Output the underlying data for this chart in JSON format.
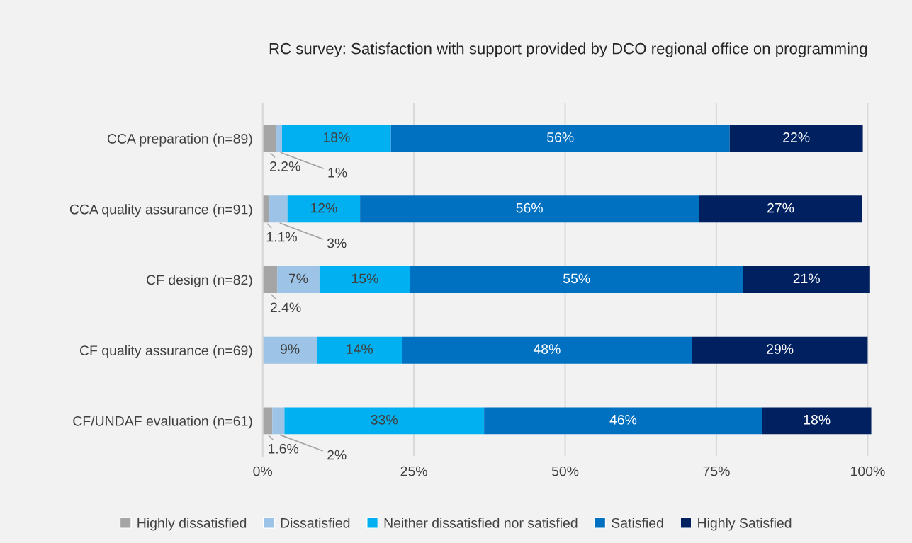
{
  "chart_data": {
    "type": "bar",
    "orientation": "horizontal",
    "stacked": true,
    "title": "RC survey: Satisfaction with support provided by DCO regional office on programming",
    "categories": [
      "CCA preparation (n=89)",
      "CCA quality assurance (n=91)",
      "CF design (n=82)",
      "CF quality assurance (n=69)",
      "CF/UNDAF evaluation (n=61)"
    ],
    "series": [
      {
        "name": "Highly dissatisfied",
        "color": "#a5a5a5",
        "values": [
          2.2,
          1.1,
          2.4,
          null,
          1.6
        ],
        "value_labels": [
          "2.2%",
          "1.1%",
          "2.4%",
          null,
          "1.6%"
        ]
      },
      {
        "name": "Dissatisfied",
        "color": "#9dc3e6",
        "values": [
          1,
          3,
          7,
          9,
          2
        ],
        "value_labels": [
          "1%",
          "3%",
          "7%",
          "9%",
          "2%"
        ]
      },
      {
        "name": "Neither dissatisfied nor satisfied",
        "color": "#00b0f0",
        "values": [
          18,
          12,
          15,
          14,
          33
        ],
        "value_labels": [
          "18%",
          "12%",
          "15%",
          "14%",
          "33%"
        ]
      },
      {
        "name": "Satisfied",
        "color": "#0070c0",
        "values": [
          56,
          56,
          55,
          48,
          46
        ],
        "value_labels": [
          "56%",
          "56%",
          "55%",
          "48%",
          "46%"
        ]
      },
      {
        "name": "Highly Satisfied",
        "color": "#002060",
        "values": [
          22,
          27,
          21,
          29,
          18
        ],
        "value_labels": [
          "22%",
          "27%",
          "21%",
          "29%",
          "18%"
        ]
      }
    ],
    "xlim": [
      0,
      101
    ],
    "xticks": [
      {
        "value": 0,
        "label": "0%"
      },
      {
        "value": 25,
        "label": "25%"
      },
      {
        "value": 50,
        "label": "50%"
      },
      {
        "value": 75,
        "label": "75%"
      },
      {
        "value": 100,
        "label": "100%"
      }
    ],
    "grid": "x",
    "legend": "bottom"
  }
}
